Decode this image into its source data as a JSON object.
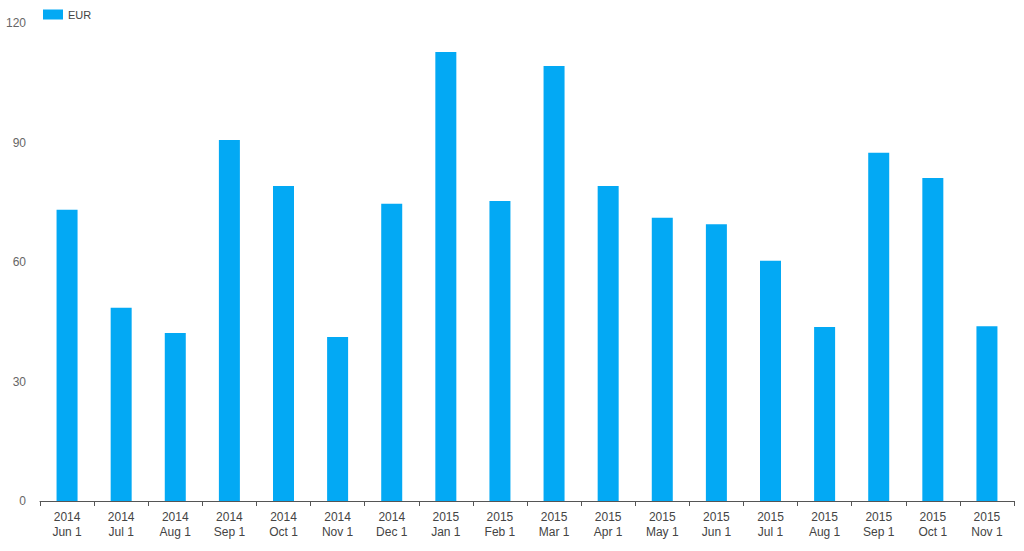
{
  "chart_data": {
    "type": "bar",
    "categories": [
      "2014\nJun 1",
      "2014\nJul 1",
      "2014\nAug 1",
      "2014\nSep 1",
      "2014\nOct 1",
      "2014\nNov 1",
      "2014\nDec 1",
      "2015\nJan 1",
      "2015\nFeb 1",
      "2015\nMar 1",
      "2015\nApr 1",
      "2015\nMay 1",
      "2015\nJun 1",
      "2015\nJul 1",
      "2015\nAug 1",
      "2015\nSep 1",
      "2015\nOct 1",
      "2015\nNov 1"
    ],
    "series": [
      {
        "name": "EUR",
        "color": "#03a9f4",
        "values": [
          73.1,
          48.5,
          42.2,
          90.6,
          79.1,
          41.2,
          74.6,
          112.7,
          75.3,
          109.2,
          79.1,
          71.1,
          69.5,
          60.3,
          43.7,
          87.4,
          81.1,
          43.9
        ]
      }
    ],
    "ylim": [
      0,
      120
    ],
    "yticks": [
      0,
      30,
      60,
      90,
      120
    ],
    "grid": false,
    "legend": "top-left"
  }
}
